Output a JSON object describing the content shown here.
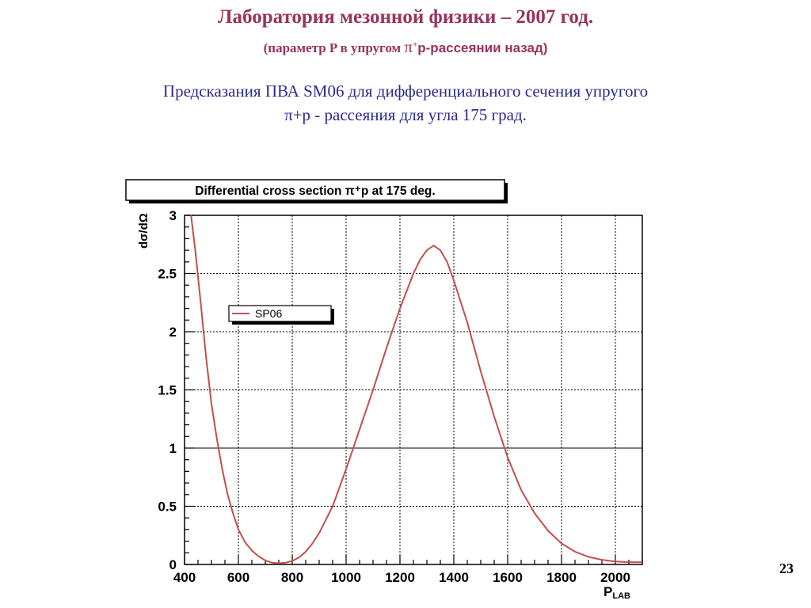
{
  "colors": {
    "title": "#99335c",
    "description": "#2a2a8f",
    "curve": "#c0504d",
    "grid": "#000000"
  },
  "slide": {
    "title": "Лаборатория мезонной физики – 2007 год.",
    "subtitle_pre": "(параметр P в упругом ",
    "subtitle_pi": "π",
    "subtitle_sup": "+",
    "subtitle_post": "p-рассеянии назад)",
    "desc_line1": "Предсказания ПВА SM06 для дифференциального сечения  упругого",
    "desc_line2": "π+p - рассеяния для угла 175 град.",
    "page_number": "23"
  },
  "chart_data": {
    "type": "line",
    "title": "Differential cross section π⁺p at 175 deg.",
    "xlabel": "P_LAB",
    "ylabel": "dσ/dΩ",
    "xlim": [
      400,
      2100
    ],
    "ylim": [
      0,
      3
    ],
    "grid": true,
    "legend_position": "upper-left",
    "x_ticks": [
      "400",
      "600",
      "800",
      "1000",
      "1200",
      "1400",
      "1600",
      "1800",
      "2000"
    ],
    "y_ticks": [
      "0",
      "0.5",
      "1",
      "1.5",
      "2",
      "2.5",
      "3"
    ],
    "series": [
      {
        "name": "SP06",
        "x": [
          424,
          440,
          460,
          480,
          500,
          520,
          540,
          560,
          580,
          600,
          625,
          650,
          675,
          700,
          725,
          750,
          775,
          800,
          825,
          850,
          875,
          900,
          950,
          1000,
          1050,
          1100,
          1150,
          1200,
          1250,
          1275,
          1300,
          1325,
          1350,
          1375,
          1400,
          1450,
          1500,
          1550,
          1600,
          1650,
          1700,
          1750,
          1800,
          1850,
          1900,
          1950,
          2000,
          2050,
          2100
        ],
        "y": [
          3.0,
          2.7,
          2.25,
          1.78,
          1.38,
          1.08,
          0.82,
          0.6,
          0.44,
          0.3,
          0.19,
          0.12,
          0.07,
          0.035,
          0.015,
          0.01,
          0.015,
          0.03,
          0.06,
          0.11,
          0.18,
          0.27,
          0.5,
          0.82,
          1.16,
          1.5,
          1.86,
          2.2,
          2.5,
          2.62,
          2.7,
          2.74,
          2.7,
          2.6,
          2.44,
          2.08,
          1.66,
          1.27,
          0.92,
          0.64,
          0.44,
          0.29,
          0.18,
          0.11,
          0.065,
          0.04,
          0.025,
          0.02,
          0.02
        ]
      }
    ]
  }
}
